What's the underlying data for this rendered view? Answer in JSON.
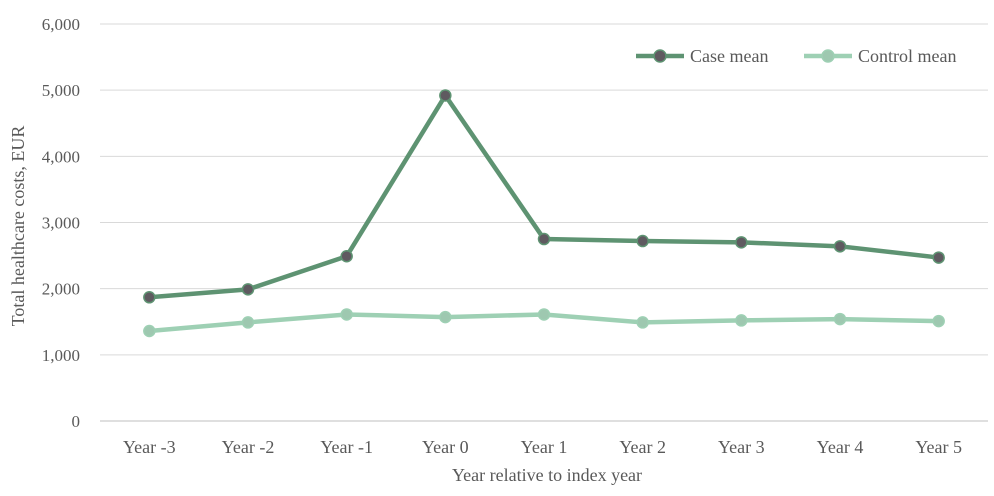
{
  "chart_data": {
    "type": "line",
    "categories": [
      "Year -3",
      "Year -2",
      "Year -1",
      "Year 0",
      "Year 1",
      "Year 2",
      "Year 3",
      "Year 4",
      "Year 5"
    ],
    "series": [
      {
        "name": "Case mean",
        "values": [
          1870,
          1990,
          2490,
          4920,
          2750,
          2720,
          2700,
          2640,
          2470
        ],
        "line_color": "#5e9372",
        "marker_color": "#5f5a60"
      },
      {
        "name": "Control mean",
        "values": [
          1360,
          1490,
          1610,
          1570,
          1610,
          1490,
          1520,
          1540,
          1510
        ],
        "line_color": "#9ed0b4",
        "marker_color": "#9ec8b0"
      }
    ],
    "ylim": [
      0,
      6000
    ],
    "y_ticks": [
      0,
      1000,
      2000,
      3000,
      4000,
      5000,
      6000
    ],
    "y_tick_labels": [
      "0",
      "1,000",
      "2,000",
      "3,000",
      "4,000",
      "5,000",
      "6,000"
    ],
    "xlabel": "Year relative  to index year",
    "ylabel": "Total healthcare  costs, EUR",
    "grid": true,
    "legend_position": "top-right"
  }
}
